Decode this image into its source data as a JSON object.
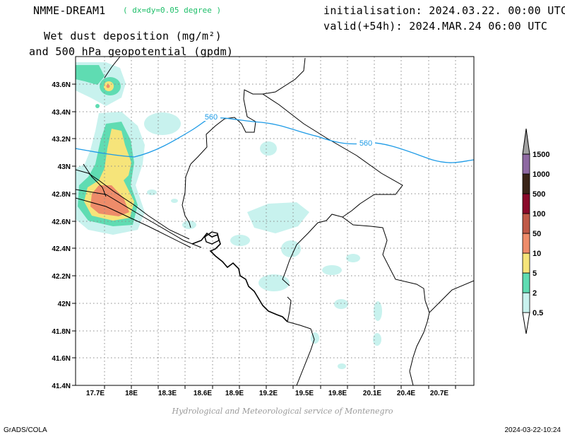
{
  "header": {
    "model": "NMME-DREAM1",
    "resolution": "( dx=dy=0.05 degree )",
    "title_line1": "Wet dust deposition (mg/m²)",
    "title_line2": "and 500 hPa geopotential (gpdm)",
    "init": "initialisation: 2024.03.22. 00:00 UTC",
    "valid": "valid(+54h): 2024.MAR.24 06:00 UTC"
  },
  "axes": {
    "lon_ticks": [
      "17.7E",
      "18E",
      "18.3E",
      "18.6E",
      "18.9E",
      "19.2E",
      "19.5E",
      "19.8E",
      "20.1E",
      "20.4E",
      "20.7E"
    ],
    "lat_ticks": [
      "43.6N",
      "43.4N",
      "43.2N",
      "43N",
      "42.8N",
      "42.6N",
      "42.4N",
      "42.2N",
      "42N",
      "41.8N",
      "41.6N",
      "41.4N"
    ]
  },
  "contour": {
    "label": "560",
    "color": "#1e9be6"
  },
  "legend": {
    "levels": [
      {
        "label": "0.5",
        "color": "#c8f2ee"
      },
      {
        "label": "2",
        "color": "#5fdcb2"
      },
      {
        "label": "5",
        "color": "#f6e47a"
      },
      {
        "label": "10",
        "color": "#ee8c6a"
      },
      {
        "label": "50",
        "color": "#c05a48"
      },
      {
        "label": "100",
        "color": "#8a0a2a"
      },
      {
        "label": "500",
        "color": "#3a2418"
      },
      {
        "label": "1000",
        "color": "#8e69a2"
      },
      {
        "label": "1500",
        "color": "#a0a0a0"
      }
    ]
  },
  "footer": {
    "credit": "Hydrological and Meteorological service of Montenegro",
    "software": "GrADS/COLA",
    "timestamp": "2024-03-22-10:24"
  }
}
